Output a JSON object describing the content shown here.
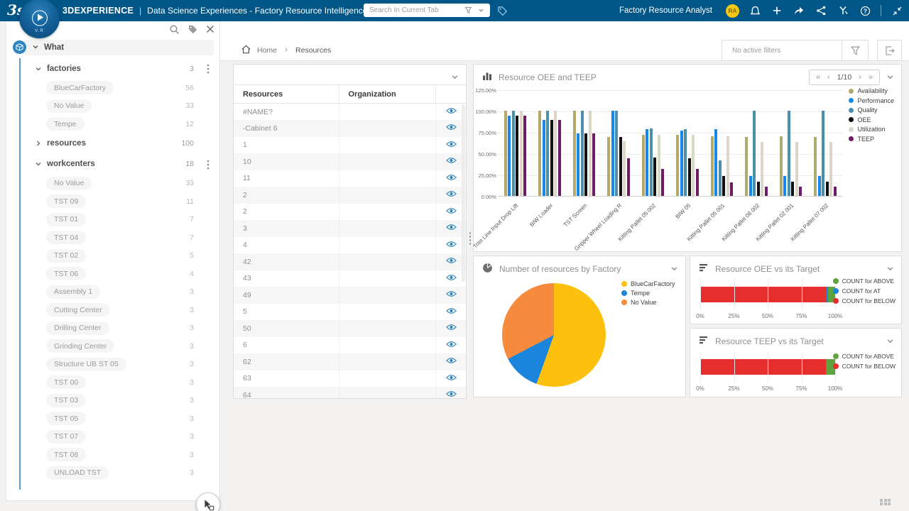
{
  "topbar": {
    "brand": "3DEXPERIENCE",
    "separator": "|",
    "app_title": "Data Science Experiences - Factory Resource Intelligence",
    "compass_label": "V.R",
    "search_placeholder": "Search In Current Tab",
    "user_role": "Factory Resource Analyst",
    "avatar_initials": "RA"
  },
  "sidebar": {
    "sections": [
      {
        "label": "What",
        "facets": [
          {
            "name": "factories",
            "count": "3",
            "expanded": true,
            "menu": true,
            "values": [
              {
                "label": "BlueCarFactory",
                "count": "56"
              },
              {
                "label": "No Value",
                "count": "33"
              },
              {
                "label": "Tempe",
                "count": "12"
              }
            ]
          },
          {
            "name": "resources",
            "count": "100",
            "expanded": false,
            "menu": false,
            "values": []
          },
          {
            "name": "workcenters",
            "count": "18",
            "expanded": true,
            "menu": true,
            "values": [
              {
                "label": "No Value",
                "count": "33"
              },
              {
                "label": "TST 09",
                "count": "11"
              },
              {
                "label": "TST 01",
                "count": "7"
              },
              {
                "label": "TST 04",
                "count": "7"
              },
              {
                "label": "TST 02",
                "count": "5"
              },
              {
                "label": "TST 06",
                "count": "4"
              },
              {
                "label": "Assembly 1",
                "count": "3"
              },
              {
                "label": "Cutting Center",
                "count": "3"
              },
              {
                "label": "Drilling Center",
                "count": "3"
              },
              {
                "label": "Grinding Center",
                "count": "3"
              },
              {
                "label": "Structure UB ST 05",
                "count": "3"
              },
              {
                "label": "TST 00",
                "count": "3"
              },
              {
                "label": "TST 03",
                "count": "3"
              },
              {
                "label": "TST 05",
                "count": "3"
              },
              {
                "label": "TST 07",
                "count": "3"
              },
              {
                "label": "TST 08",
                "count": "3"
              },
              {
                "label": "UNLOAD TST",
                "count": "3"
              }
            ]
          }
        ]
      }
    ]
  },
  "breadcrumb": {
    "home": "Home",
    "current": "Resources",
    "filters_status": "No active filters"
  },
  "table": {
    "columns": [
      "Resources",
      "Organization"
    ],
    "rows": [
      "#NAME?",
      "-Cabinet 6",
      "1",
      "10",
      "11",
      "2",
      "2",
      "3",
      "4",
      "42",
      "43",
      "49",
      "5",
      "50",
      "6",
      "62",
      "63",
      "64"
    ]
  },
  "chart_data": [
    {
      "id": "oee_teep",
      "type": "bar",
      "title": "Resource OEE and TEEP",
      "pagination": {
        "first": "«",
        "prev": "‹",
        "page": "1/10",
        "next": "›",
        "last": "»"
      },
      "ylim": [
        0,
        125
      ],
      "y_ticks": [
        "0.00%",
        "25.00%",
        "50.00%",
        "75.00%",
        "100.00%",
        "125.00%"
      ],
      "legend_position": "right",
      "grid": true,
      "categories": [
        "Trim Line Input Drop Lift",
        "BIW Loader",
        "TST Screen",
        "Gripper Wheel Loading R",
        "Kitting Pallet 05 002",
        "BIW 05",
        "Kitting Pallet 05 001",
        "Kitting Pallet 08 002",
        "Kitting Pallet 02 001",
        "Kitting Pallet 07 002"
      ],
      "series": [
        {
          "name": "Availability",
          "color": "#b3a96d",
          "values": [
            100,
            100,
            100,
            69,
            72,
            72,
            70,
            69,
            70,
            69
          ]
        },
        {
          "name": "Performance",
          "color": "#1589e9",
          "values": [
            94,
            89,
            73,
            100,
            78,
            77,
            78,
            23,
            23,
            23
          ]
        },
        {
          "name": "Quality",
          "color": "#4a90ad",
          "values": [
            100,
            100,
            100,
            100,
            79,
            78,
            42,
            100,
            100,
            100
          ]
        },
        {
          "name": "OEE",
          "color": "#111111",
          "values": [
            94,
            89,
            73,
            69,
            45,
            44,
            23,
            17,
            17,
            17
          ]
        },
        {
          "name": "Utilization",
          "color": "#ddd5c8",
          "values": [
            100,
            100,
            100,
            64,
            72,
            72,
            70,
            63,
            63,
            63
          ]
        },
        {
          "name": "TEEP",
          "color": "#6e1b66",
          "values": [
            94,
            89,
            73,
            44,
            32,
            32,
            16,
            11,
            11,
            11
          ]
        }
      ]
    },
    {
      "id": "factory_pie",
      "type": "pie",
      "title": "Number of resources by Factory",
      "slices": [
        {
          "label": "BlueCarFactory",
          "value": 56,
          "color": "#fdc10d"
        },
        {
          "label": "Tempe",
          "value": 12,
          "color": "#1a85da"
        },
        {
          "label": "No Value",
          "value": 33,
          "color": "#f68b3e"
        }
      ]
    },
    {
      "id": "oee_target",
      "type": "stacked-hbar",
      "title": "Resource OEE vs its Target",
      "x_ticks": [
        "0%",
        "25%",
        "50%",
        "75%",
        "100%"
      ],
      "xlim": [
        0,
        100
      ],
      "segments": [
        {
          "label": "COUNT for ABOVE",
          "color": "#5fa33e",
          "pct": 5.5
        },
        {
          "label": "COUNT for AT",
          "color": "#1a85da",
          "pct": 1.5
        },
        {
          "label": "COUNT for BELOW",
          "color": "#e62e2e",
          "pct": 93
        }
      ]
    },
    {
      "id": "teep_target",
      "type": "stacked-hbar",
      "title": "Resource TEEP vs its Target",
      "x_ticks": [
        "0%",
        "25%",
        "50%",
        "75%",
        "100%"
      ],
      "xlim": [
        0,
        100
      ],
      "segments": [
        {
          "label": "COUNT for ABOVE",
          "color": "#5fa33e",
          "pct": 7
        },
        {
          "label": "COUNT for BELOW",
          "color": "#e62e2e",
          "pct": 93
        }
      ]
    }
  ]
}
